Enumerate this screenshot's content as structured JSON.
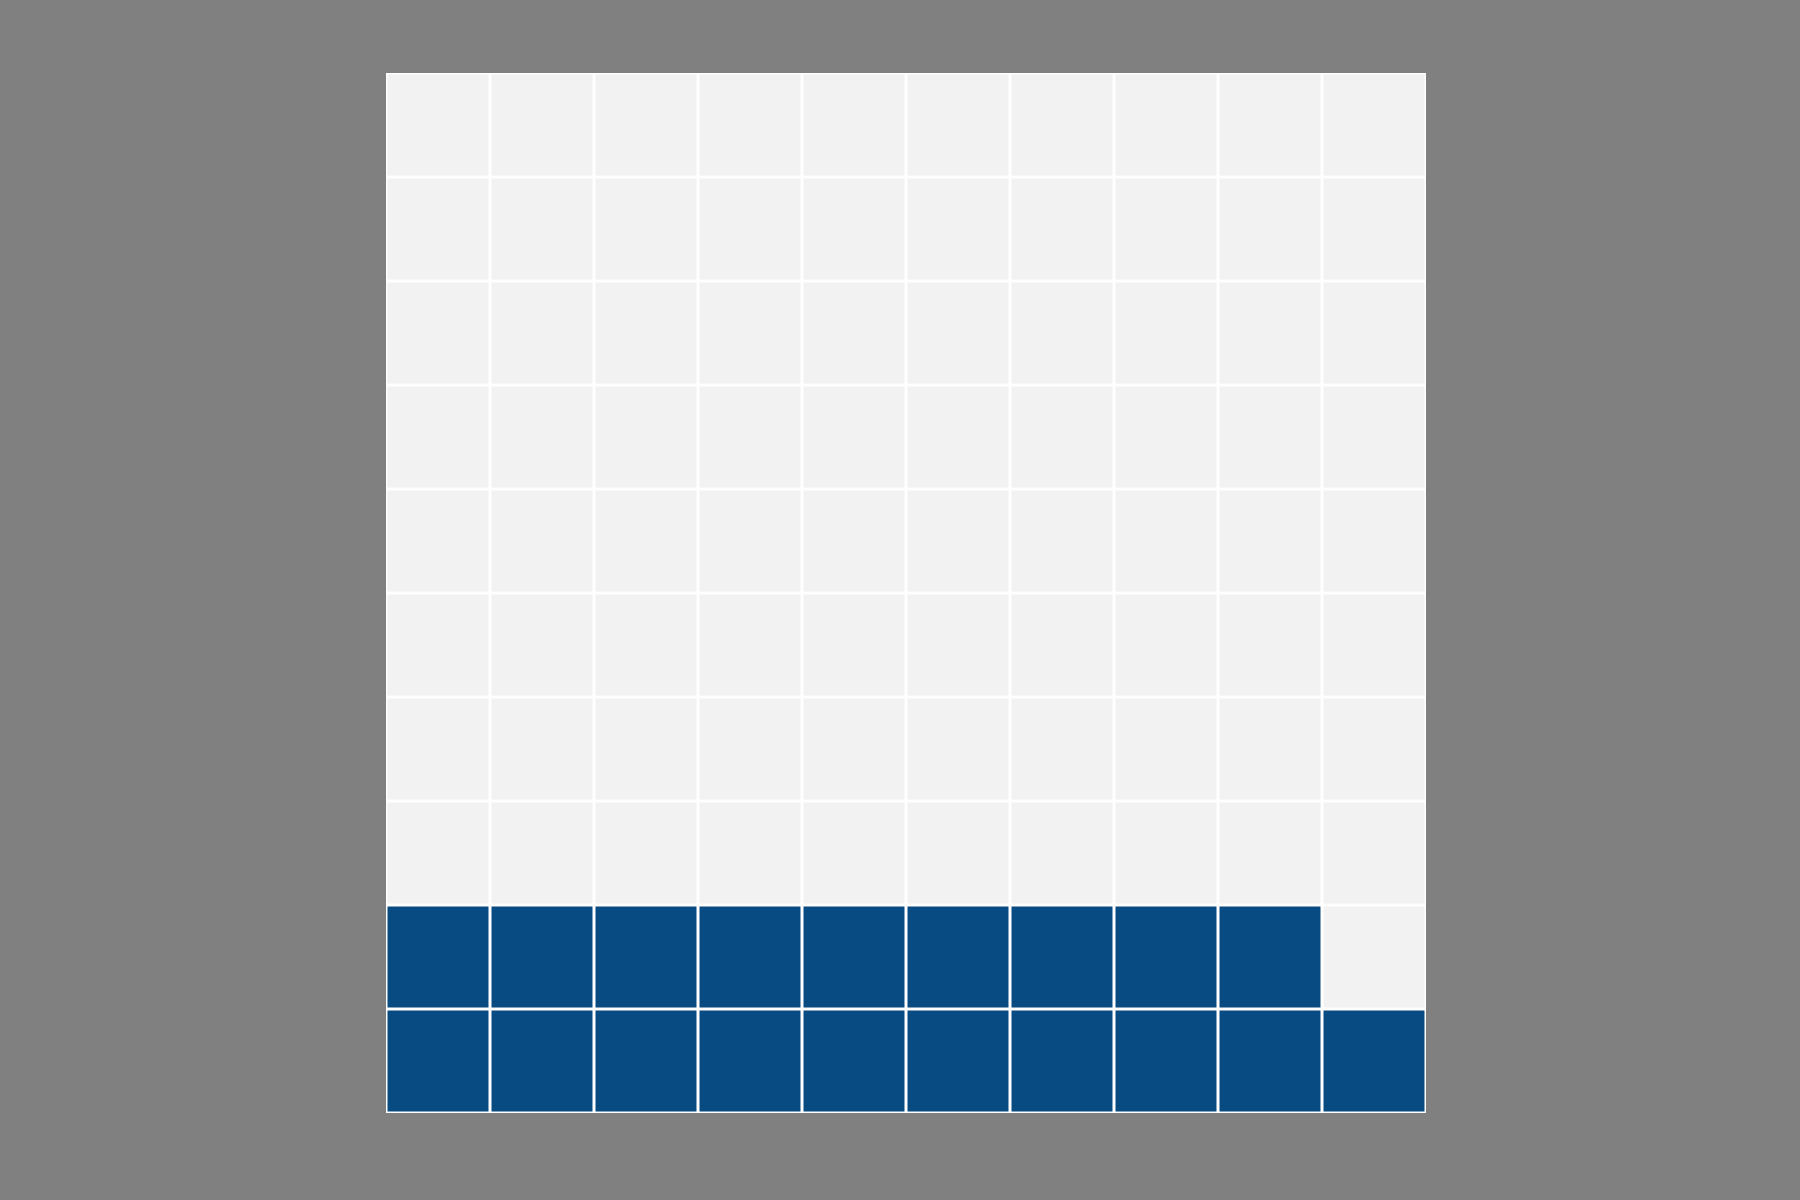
{
  "chart_data": {
    "type": "waffle",
    "value": 19,
    "total": 100,
    "columns": 10,
    "color": "#084a82",
    "empty_color": "#f2f2f2"
  }
}
